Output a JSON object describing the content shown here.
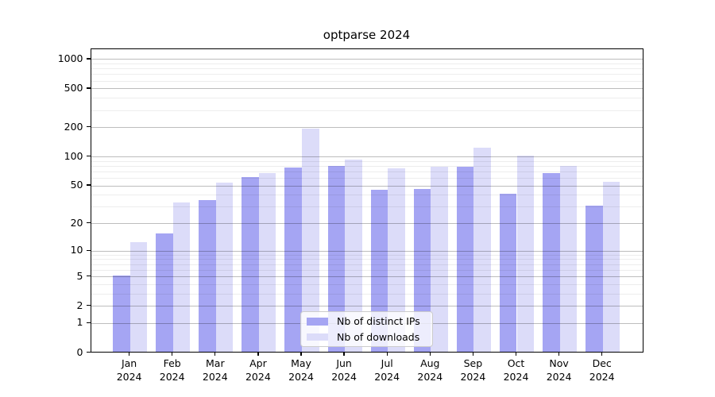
{
  "title": "optparse 2024",
  "chart_data": {
    "type": "bar",
    "title": "optparse 2024",
    "categories": [
      "Jan 2024",
      "Feb 2024",
      "Mar 2024",
      "Apr 2024",
      "May 2024",
      "Jun 2024",
      "Jul 2024",
      "Aug 2024",
      "Sep 2024",
      "Oct 2024",
      "Nov 2024",
      "Dec 2024"
    ],
    "series": [
      {
        "name": "Nb of distinct IPs",
        "color": "#a5a5f3",
        "values": [
          5,
          15,
          34,
          60,
          75,
          78,
          44,
          45,
          76,
          40,
          65,
          30
        ]
      },
      {
        "name": "Nb of downloads",
        "color": "#dcdcf9",
        "values": [
          12,
          32,
          52,
          65,
          190,
          90,
          73,
          76,
          120,
          100,
          77,
          53
        ]
      }
    ],
    "xlabel": "",
    "ylabel": "",
    "yscale": "log1p",
    "y_ticks": [
      0,
      1,
      2,
      5,
      10,
      20,
      50,
      100,
      200,
      500,
      1000
    ],
    "y_minor_ticks": [
      3,
      4,
      6,
      7,
      8,
      9,
      30,
      40,
      60,
      70,
      80,
      90,
      300,
      400,
      600,
      700,
      800,
      900
    ],
    "ylim": [
      0,
      1272
    ],
    "grid": true,
    "legend_position": "lower center"
  }
}
